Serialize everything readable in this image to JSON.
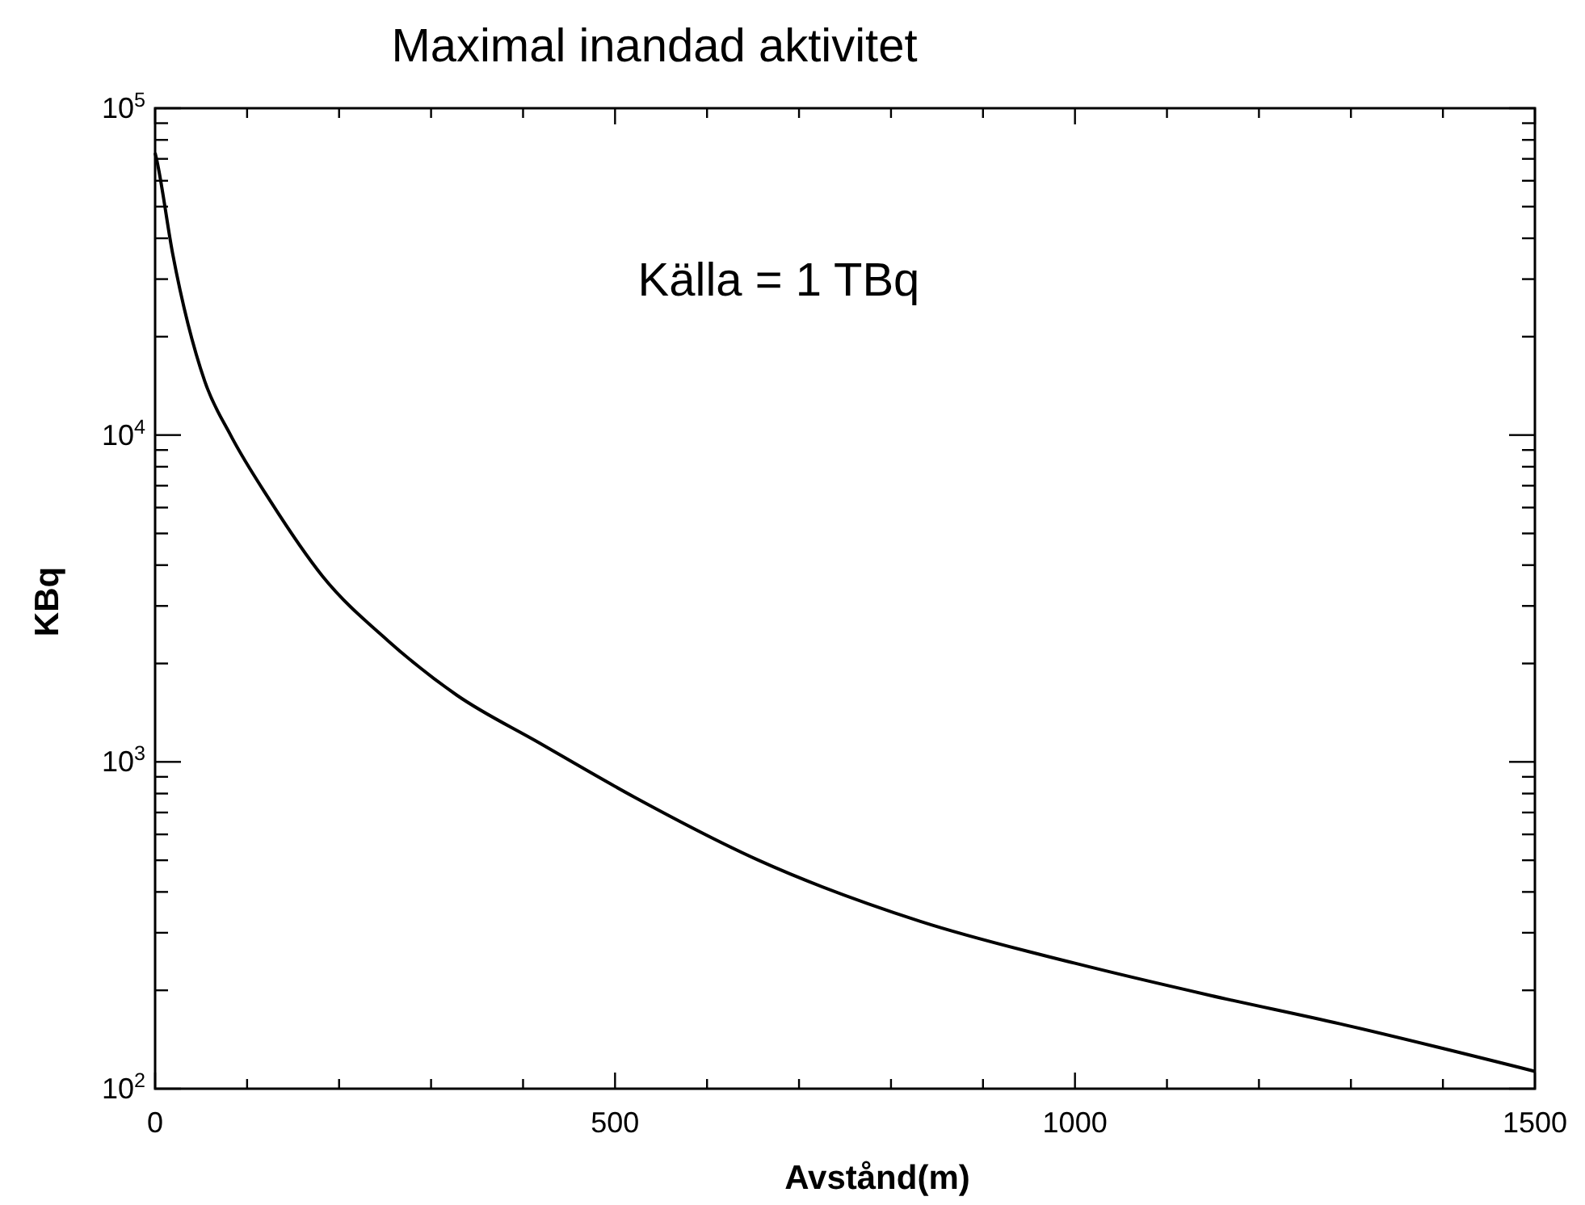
{
  "chart_data": {
    "type": "line",
    "title": "Maximal inandad aktivitet",
    "xlabel": "Avstånd(m)",
    "ylabel": "KBq",
    "annotations": [
      "Källa = 1 TBq"
    ],
    "log": "y",
    "grid": false,
    "xlim": [
      0,
      1500
    ],
    "xticks": [
      0,
      500,
      1000,
      1500
    ],
    "ylim": [
      100,
      100000
    ],
    "yticks": [
      {
        "value": 100,
        "label": "10$^{2}$"
      },
      {
        "value": 1000,
        "label": "10$^{3}$"
      },
      {
        "value": 10000,
        "label": "10$^{4}$"
      },
      {
        "value": 100000,
        "label": "10$^{5}$"
      }
    ],
    "series": [
      {
        "color": "#000000",
        "x": [
          0,
          2,
          19,
          54,
          82,
          125,
          182,
          253,
          328,
          416,
          521,
          656,
          832,
          1000,
          1147,
          1288,
          1500
        ],
        "values": [
          73000,
          69000,
          36000,
          14600,
          10000,
          6300,
          3700,
          2350,
          1600,
          1150,
          780,
          500,
          325,
          242,
          193,
          158,
          113
        ]
      }
    ]
  }
}
